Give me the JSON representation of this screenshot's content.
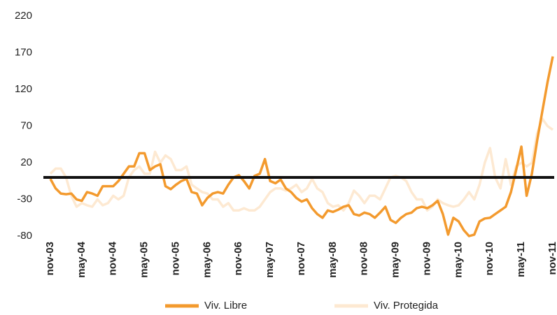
{
  "chart_data": {
    "type": "line",
    "categories": [
      "nov-03",
      null,
      null,
      null,
      null,
      null,
      "may-04",
      null,
      null,
      null,
      null,
      null,
      "nov-04",
      null,
      null,
      null,
      null,
      null,
      "may-05",
      null,
      null,
      null,
      null,
      null,
      "nov-05",
      null,
      null,
      null,
      null,
      null,
      "may-06",
      null,
      null,
      null,
      null,
      null,
      "nov-06",
      null,
      null,
      null,
      null,
      null,
      "may-07",
      null,
      null,
      null,
      null,
      null,
      "nov-07",
      null,
      null,
      null,
      null,
      null,
      "may-08",
      null,
      null,
      null,
      null,
      null,
      "nov-08",
      null,
      null,
      null,
      null,
      null,
      "may-09",
      null,
      null,
      null,
      null,
      null,
      "nov-09",
      null,
      null,
      null,
      null,
      null,
      "may-10",
      null,
      null,
      null,
      null,
      null,
      "nov-10",
      null,
      null,
      null,
      null,
      null,
      "may-11",
      null,
      null,
      null,
      null,
      null,
      "nov-11"
    ],
    "series": [
      {
        "name": "Viv. Libre",
        "color": "#f39a2e",
        "values": [
          -2,
          -15,
          -22,
          -23,
          -22,
          -30,
          -32,
          -20,
          -22,
          -25,
          -12,
          -12,
          -12,
          -5,
          5,
          15,
          15,
          33,
          33,
          10,
          15,
          18,
          -12,
          -16,
          -10,
          -5,
          -2,
          -20,
          -22,
          -38,
          -28,
          -22,
          -20,
          -22,
          -10,
          0,
          3,
          -5,
          -15,
          2,
          5,
          25,
          -5,
          -8,
          -3,
          -15,
          -20,
          -28,
          -33,
          -30,
          -42,
          -50,
          -55,
          -45,
          -47,
          -44,
          -40,
          -38,
          -50,
          -52,
          -48,
          -50,
          -55,
          -48,
          -40,
          -58,
          -62,
          -55,
          -50,
          -48,
          -42,
          -40,
          -42,
          -38,
          -32,
          -50,
          -78,
          -55,
          -60,
          -72,
          -80,
          -78,
          -60,
          -56,
          -55,
          -50,
          -45,
          -40,
          -20,
          10,
          42,
          -25,
          5,
          50,
          90,
          130,
          165
        ]
      },
      {
        "name": "Viv. Protegida",
        "color": "#fde9d2",
        "values": [
          5,
          12,
          12,
          0,
          -25,
          -40,
          -35,
          -38,
          -40,
          -30,
          -38,
          -35,
          -25,
          -30,
          -25,
          0,
          10,
          15,
          5,
          5,
          35,
          20,
          30,
          25,
          10,
          10,
          15,
          -10,
          -15,
          -20,
          -22,
          -30,
          -30,
          -40,
          -35,
          -45,
          -45,
          -42,
          -45,
          -45,
          -40,
          -30,
          -20,
          -15,
          -15,
          -18,
          -15,
          -10,
          -20,
          -15,
          -2,
          -15,
          -20,
          -35,
          -40,
          -38,
          -45,
          -35,
          -18,
          -25,
          -35,
          -25,
          -25,
          -30,
          -15,
          0,
          2,
          0,
          -5,
          -20,
          -30,
          -30,
          -45,
          -40,
          -30,
          -35,
          -38,
          -40,
          -38,
          -30,
          -20,
          -30,
          -10,
          20,
          40,
          0,
          -15,
          25,
          -10,
          15,
          20,
          15,
          20,
          60,
          80,
          70,
          65
        ]
      }
    ],
    "ylim": [
      -80,
      220
    ],
    "yticks": [
      -80,
      -30,
      20,
      70,
      120,
      170,
      220
    ],
    "reference_line": 0,
    "grid": false,
    "legend": "bottom"
  }
}
